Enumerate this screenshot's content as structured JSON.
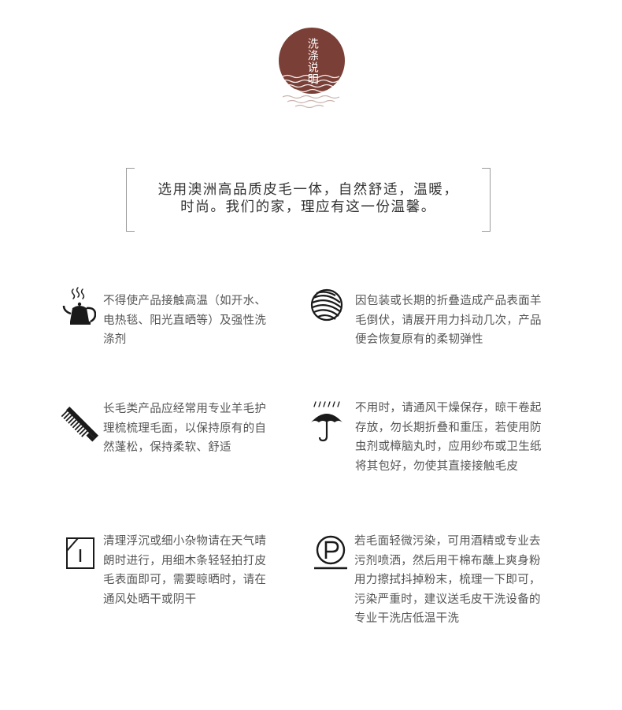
{
  "badge": {
    "title": "洗涤说明",
    "color": "#7a3f36"
  },
  "intro": {
    "line1": "选用澳洲高品质皮毛一体，自然舒适，温暖，",
    "line2": "时尚。我们的家，理应有这一份温馨。"
  },
  "care_items": [
    {
      "icon": "kettle-icon",
      "lines": [
        "不得使产品接触高温（如开水、",
        "电热毯、阳光直晒等）及强性洗",
        "涤剂"
      ]
    },
    {
      "icon": "wool-ball-icon",
      "lines": [
        "因包装或长期的折叠造成产品表面羊",
        "毛倒伏，请展开用力抖动几次，产品",
        "便会恢复原有的柔韧弹性"
      ]
    },
    {
      "icon": "comb-icon",
      "lines": [
        "长毛类产品应经常用专业羊毛护",
        "理梳梳理毛面，以保持原有的自",
        "然蓬松，保持柔软、舒适"
      ]
    },
    {
      "icon": "umbrella-icon",
      "lines": [
        "不用时，请通风干燥保存，晾干卷起",
        "存放，勿长期折叠和重压，若使用防",
        "虫剂或樟脑丸时，应用纱布或卫生纸",
        "将其包好，勿使其直接接触毛皮"
      ]
    },
    {
      "icon": "line-dry-icon",
      "lines": [
        "清理浮沉或细小杂物请在天气晴",
        "朗时进行，用细木条轻轻拍打皮",
        "毛表面即可，需要晾晒时，请在",
        "通风处晒干或阴干"
      ]
    },
    {
      "icon": "dry-clean-p-icon",
      "lines": [
        "若毛面轻微污染，可用酒精或专业去",
        "污剂喷洒，然后用干棉布蘸上爽身粉",
        "用力擦拭抖掉粉末，梳理一下即可，",
        "污染严重时，建议送毛皮干洗设备的",
        "专业干洗店低温干洗"
      ]
    }
  ]
}
